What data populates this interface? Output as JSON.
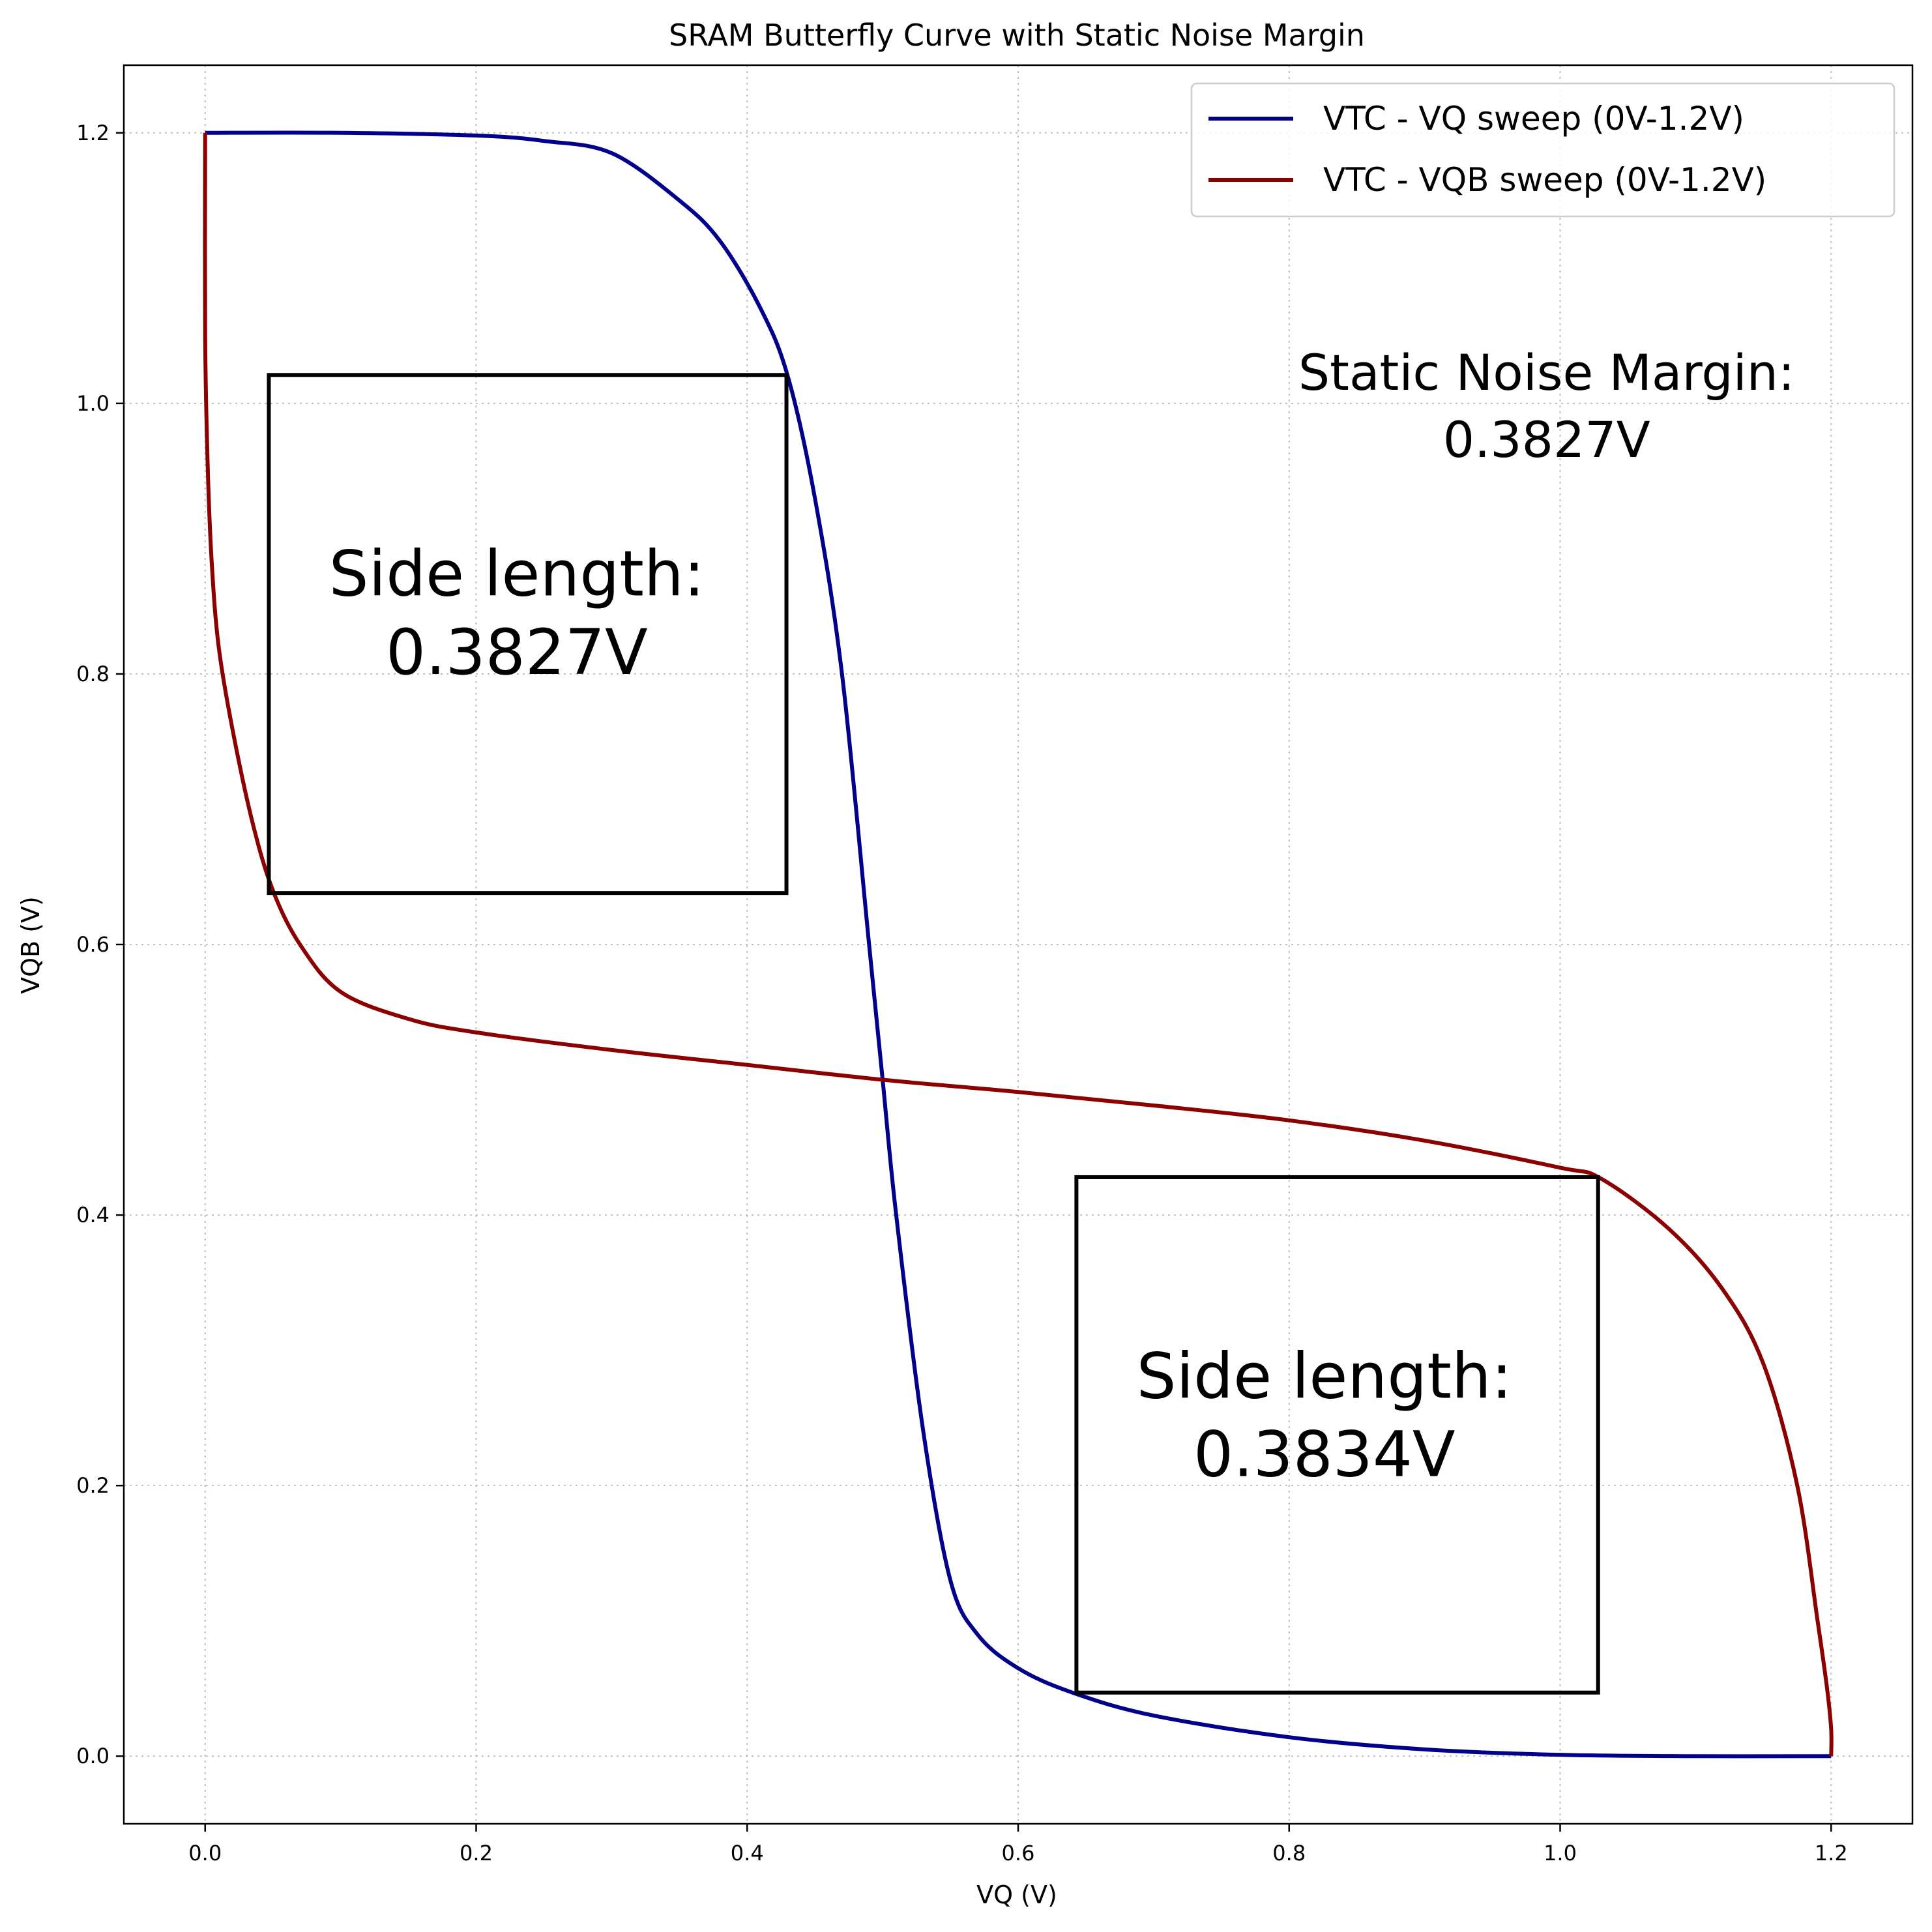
{
  "chart_data": {
    "type": "line",
    "title": "SRAM Butterfly Curve with Static Noise Margin",
    "xlabel": "VQ (V)",
    "ylabel": "VQB (V)",
    "xlim": [
      -0.06,
      1.26
    ],
    "ylim": [
      -0.05,
      1.25
    ],
    "xticks": [
      "0.0",
      "0.2",
      "0.4",
      "0.6",
      "0.8",
      "1.0",
      "1.2"
    ],
    "yticks": [
      "0.0",
      "0.2",
      "0.4",
      "0.6",
      "0.8",
      "1.0",
      "1.2"
    ],
    "grid": true,
    "legend_position": "top-right",
    "series": [
      {
        "name": "VTC - VQ sweep (0V-1.2V)",
        "color": "#00008b",
        "x": [
          0.0,
          0.1,
          0.2,
          0.25,
          0.3,
          0.35,
          0.38,
          0.41,
          0.43,
          0.45,
          0.47,
          0.49,
          0.5,
          0.51,
          0.53,
          0.55,
          0.57,
          0.6,
          0.64,
          0.7,
          0.8,
          0.9,
          1.0,
          1.1,
          1.2
        ],
        "y": [
          1.2,
          1.2,
          1.198,
          1.194,
          1.185,
          1.15,
          1.12,
          1.07,
          1.02,
          0.93,
          0.8,
          0.6,
          0.5,
          0.4,
          0.24,
          0.13,
          0.09,
          0.065,
          0.047,
          0.03,
          0.014,
          0.005,
          0.001,
          0.0,
          0.0
        ]
      },
      {
        "name": "VTC - VQB sweep (0V-1.2V)",
        "color": "#8b0000",
        "x": [
          0.0,
          0.0,
          0.002,
          0.005,
          0.01,
          0.02,
          0.035,
          0.05,
          0.07,
          0.1,
          0.15,
          0.2,
          0.3,
          0.4,
          0.5,
          0.6,
          0.7,
          0.8,
          0.9,
          1.0,
          1.03,
          1.08,
          1.12,
          1.15,
          1.175,
          1.19,
          1.197,
          1.2,
          1.2
        ],
        "y": [
          1.2,
          1.05,
          0.95,
          0.88,
          0.82,
          0.76,
          0.69,
          0.64,
          0.6,
          0.565,
          0.545,
          0.535,
          0.522,
          0.511,
          0.5,
          0.491,
          0.481,
          0.47,
          0.455,
          0.435,
          0.427,
          0.39,
          0.345,
          0.29,
          0.2,
          0.1,
          0.05,
          0.02,
          0.0
        ]
      }
    ],
    "boxes": [
      {
        "x0": 0.047,
        "y0": 0.638,
        "x1": 0.429,
        "y1": 1.021,
        "label_line1": "Side length:",
        "label_line2": "0.3827V",
        "label_x": 0.23,
        "label_y1": 0.858,
        "label_y2": 0.8
      },
      {
        "x0": 0.643,
        "y0": 0.047,
        "x1": 1.028,
        "y1": 0.428,
        "label_line1": "Side length:",
        "label_line2": "0.3834V",
        "label_x": 0.826,
        "label_y1": 0.265,
        "label_y2": 0.207
      }
    ],
    "annotation": {
      "line1": "Static Noise Margin:",
      "line2": "0.3827V",
      "x": 0.99,
      "y1": 1.01,
      "y2": 0.97
    }
  }
}
